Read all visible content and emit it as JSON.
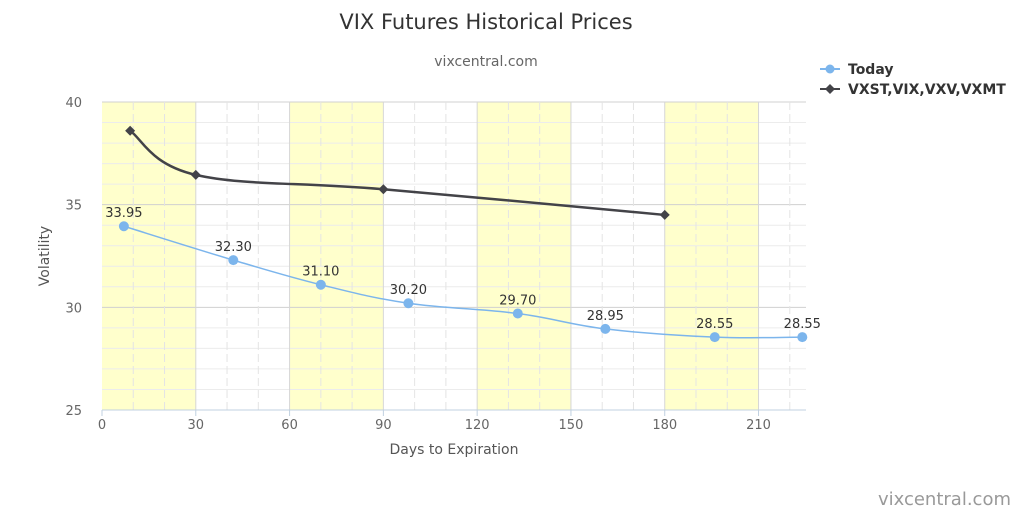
{
  "chart_data": {
    "type": "line",
    "title": "VIX Futures Historical Prices",
    "subtitle": "vixcentral.com",
    "xlabel": "Days to Expiration",
    "ylabel": "Volatility",
    "xlim": [
      0,
      225
    ],
    "ylim": [
      25,
      40
    ],
    "xticks": [
      "0",
      "30",
      "60",
      "90",
      "120",
      "150",
      "180",
      "210"
    ],
    "yticks": [
      "25",
      "30",
      "35",
      "40"
    ],
    "bands": [
      [
        0,
        30
      ],
      [
        60,
        90
      ],
      [
        120,
        150
      ],
      [
        180,
        210
      ]
    ],
    "band_color": "#ffffcc",
    "legend_position": "top-right",
    "series": [
      {
        "name": "Today",
        "color": "#7cb5ec",
        "marker": "circle",
        "x": [
          7,
          42,
          70,
          98,
          133,
          161,
          196,
          224
        ],
        "values": [
          33.95,
          32.3,
          31.1,
          30.2,
          29.7,
          28.95,
          28.55,
          28.55
        ],
        "labels": [
          "33.95",
          "32.30",
          "31.10",
          "30.20",
          "29.70",
          "28.95",
          "28.55",
          "28.55"
        ]
      },
      {
        "name": "VXST,VIX,VXV,VXMT",
        "color": "#434348",
        "marker": "diamond",
        "x": [
          9,
          30,
          90,
          180
        ],
        "values": [
          38.6,
          36.45,
          35.75,
          34.5
        ]
      }
    ]
  },
  "credit": "vixcentral.com"
}
